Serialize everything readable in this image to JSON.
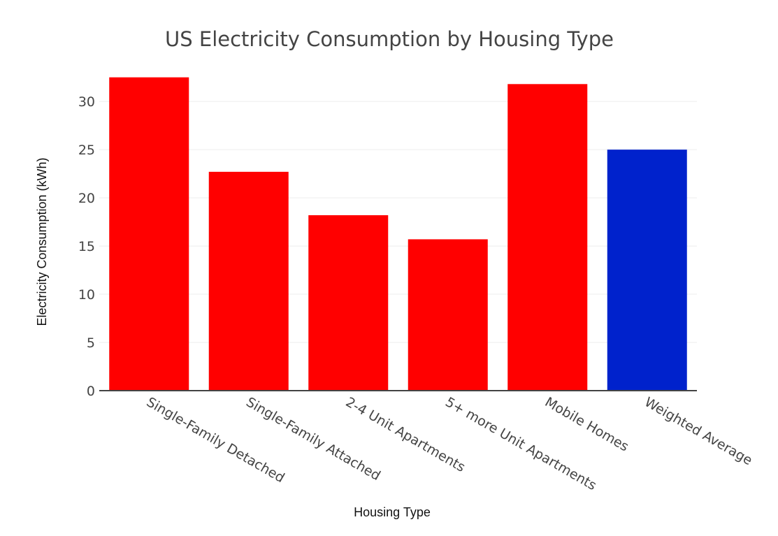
{
  "chart_data": {
    "type": "bar",
    "title": "US Electricity Consumption by Housing Type",
    "xlabel": "Housing Type",
    "ylabel": "Electricity Consumption (kWh)",
    "categories": [
      "Single-Family Detached",
      "Single-Family Attached",
      "2-4 Unit Apartments",
      "5+ more Unit Apartments",
      "Mobile Homes",
      "Weighted Average"
    ],
    "values": [
      32.5,
      22.7,
      18.2,
      15.7,
      31.8,
      25.0
    ],
    "colors": [
      "#ff0000",
      "#ff0000",
      "#ff0000",
      "#ff0000",
      "#ff0000",
      "#0022cc"
    ],
    "yticks": [
      0,
      5,
      10,
      15,
      20,
      25,
      30
    ],
    "ylim": [
      0,
      33.2
    ],
    "grid": true,
    "legend": "none"
  }
}
